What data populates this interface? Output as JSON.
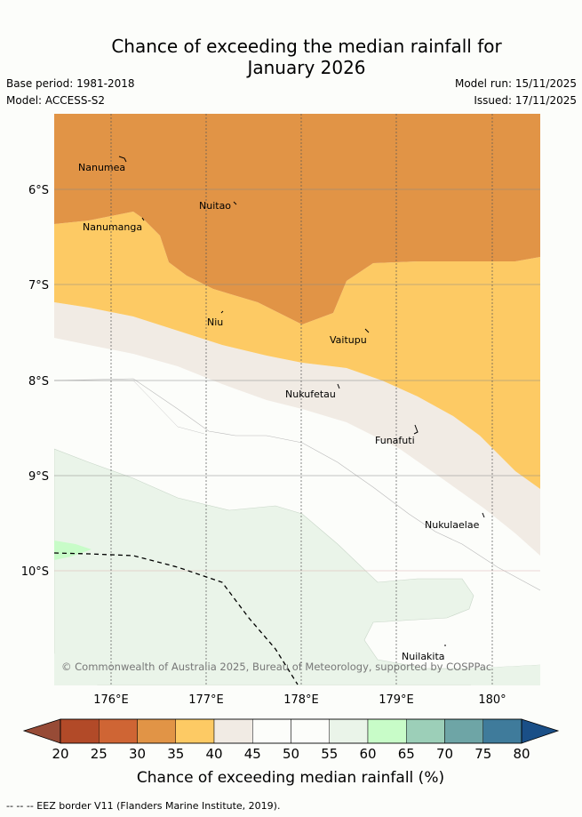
{
  "title": {
    "line1": "Chance of exceeding the median rainfall for",
    "line2": "January 2026"
  },
  "meta": {
    "base_period": "Base period: 1981-2018",
    "model": "Model: ACCESS-S2",
    "model_run": "Model run: 15/11/2025",
    "issued": "Issued: 17/11/2025"
  },
  "map": {
    "latitude_labels": [
      "6°S",
      "7°S",
      "8°S",
      "9°S",
      "10°S"
    ],
    "longitude_labels": [
      "176°E",
      "177°E",
      "178°E",
      "179°E",
      "180°"
    ],
    "places": [
      {
        "id": "nanumea",
        "label": "Nanumea"
      },
      {
        "id": "nuitao",
        "label": "Nuitao"
      },
      {
        "id": "nanumanga",
        "label": "Nanumanga"
      },
      {
        "id": "niu",
        "label": "Niu"
      },
      {
        "id": "vaitupu",
        "label": "Vaitupu"
      },
      {
        "id": "nukufetau",
        "label": "Nukufetau"
      },
      {
        "id": "funafuti",
        "label": "Funafuti"
      },
      {
        "id": "nukulaelae",
        "label": "Nukulaelae"
      },
      {
        "id": "nuilakita",
        "label": "Nuilakita"
      }
    ],
    "copyright": "© Commonwealth of Australia 2025, Bureau of Meteorology, supported by COSPPac"
  },
  "colorbar": {
    "ticks": [
      "20",
      "25",
      "30",
      "35",
      "40",
      "45",
      "50",
      "55",
      "60",
      "65",
      "70",
      "75",
      "80"
    ],
    "label": "Chance of exceeding median rainfall (%)",
    "colors": [
      "#b24a28",
      "#cf6534",
      "#e19446",
      "#fdca64",
      "#f1ebe4",
      "#fcfdfa",
      "#fcfdfa",
      "#eaf4e9",
      "#c8fcc8",
      "#9ccfb8",
      "#6ea5a6",
      "#3f7b9b"
    ],
    "under_color": "#974b36",
    "over_color": "#1a4f87"
  },
  "footer": {
    "eez_note": "-- -- -- EEZ border V11 (Flanders Marine Institute, 2019)."
  }
}
